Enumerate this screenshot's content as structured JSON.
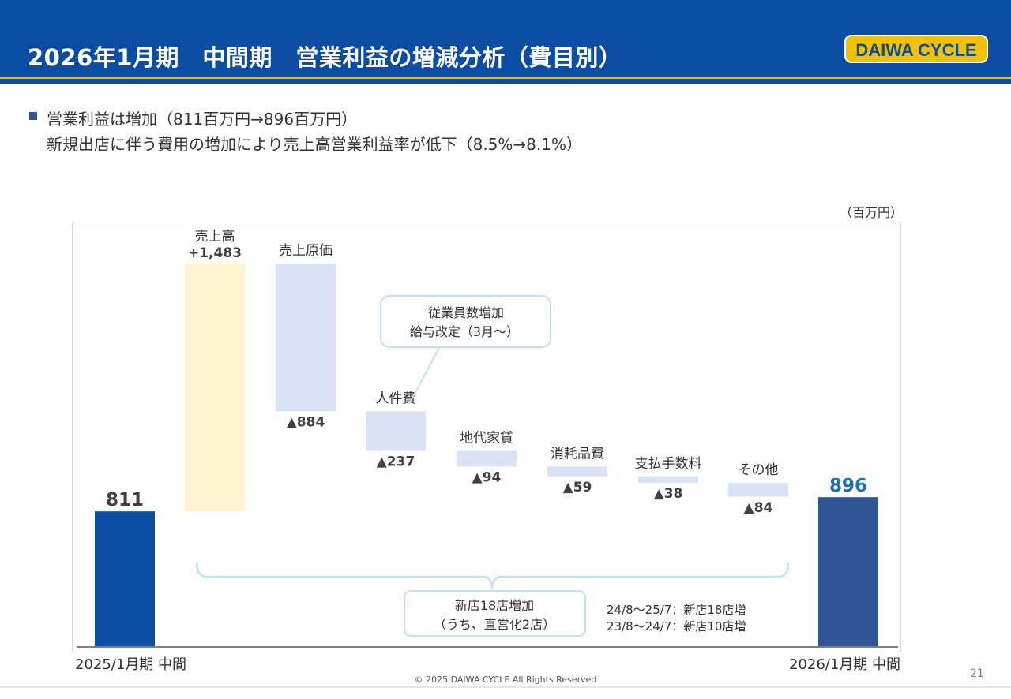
{
  "header": {
    "title": "2026年1月期　中間期　営業利益の増減分析（費目別）",
    "logo_text": "DAIWA CYCLE",
    "bar_color": "#0a4da2",
    "accent_color": "#f2c200"
  },
  "summary": {
    "line1": "営業利益は増加（811百万円→896百万円）",
    "line2": "新規出店に伴う費用の増加により売上高営業利益率が低下（8.5%→8.1%）"
  },
  "unit_label": "（百万円）",
  "chart_data": {
    "type": "waterfall",
    "unit": "百万円",
    "start": {
      "label": "2025/1月期 中間",
      "value": 811,
      "value_label": "811",
      "color": "#0a4da2"
    },
    "end": {
      "label": "2026/1月期 中間",
      "value": 896,
      "value_label": "896",
      "color": "#2f5597"
    },
    "steps": [
      {
        "category": "売上高",
        "delta": 1483,
        "value_label": "+1,483",
        "color": "#fdf6d0"
      },
      {
        "category": "売上原価",
        "delta": -884,
        "value_label": "▲884",
        "color": "#dae3f3"
      },
      {
        "category": "人件費",
        "delta": -237,
        "value_label": "▲237",
        "color": "#dae3f3"
      },
      {
        "category": "地代家賃",
        "delta": -94,
        "value_label": "▲94",
        "color": "#dae3f3"
      },
      {
        "category": "消耗品費",
        "delta": -59,
        "value_label": "▲59",
        "color": "#dae3f3"
      },
      {
        "category": "支払手数料",
        "delta": -38,
        "value_label": "▲38",
        "color": "#dae3f3"
      },
      {
        "category": "その他",
        "delta": -84,
        "value_label": "▲84",
        "color": "#dae3f3"
      }
    ],
    "callout_personnel": {
      "line1": "従業員数増加",
      "line2": "給与改定（3月～）"
    },
    "callout_new_stores": {
      "line1": "新店18店増加",
      "line2": "（うち、直営化2店）"
    },
    "notes": [
      "24/8～25/7：新店18店増",
      "23/8～24/7：新店10店増"
    ],
    "ylim": [
      0,
      2294
    ]
  },
  "footer": {
    "copyright": "© 2025 DAIWA CYCLE All Rights Reserved",
    "page_number": "21"
  }
}
